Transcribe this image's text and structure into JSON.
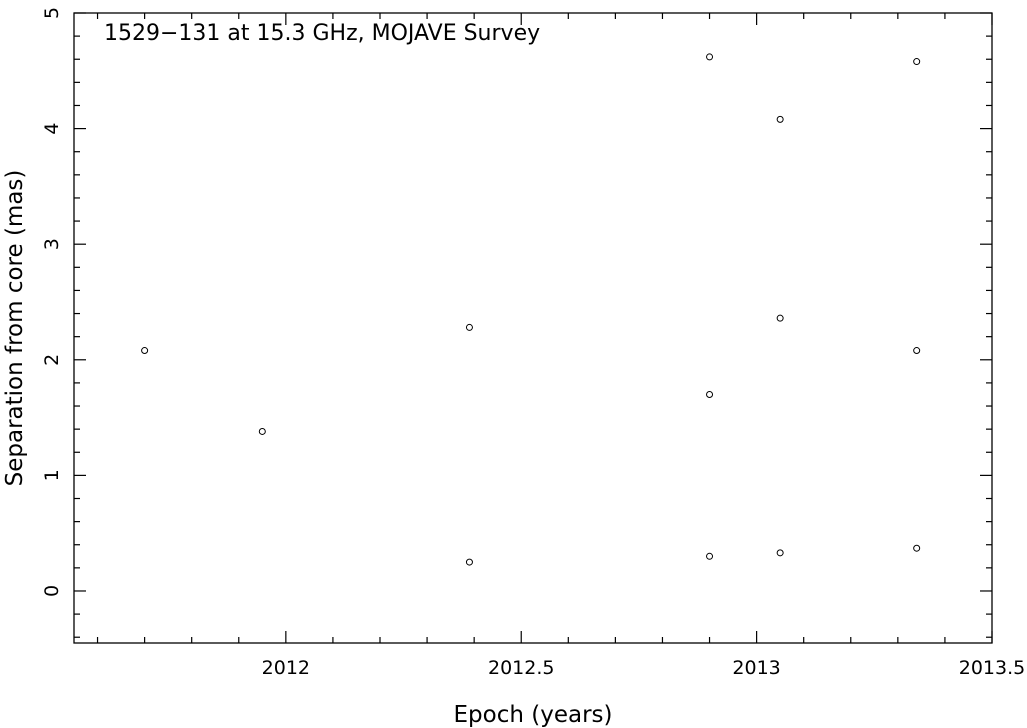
{
  "chart_data": {
    "type": "scatter",
    "title": "1529−131 at 15.3 GHz, MOJAVE Survey",
    "xlabel": "Epoch (years)",
    "ylabel": "Separation from core (mas)",
    "xlim": [
      2011.55,
      2013.5
    ],
    "ylim": [
      -0.45,
      5.0
    ],
    "x_ticks": [
      2012,
      2012.5,
      2013,
      2013.5
    ],
    "x_tick_labels": [
      "2012",
      "2012.5",
      "2013",
      "2013.5"
    ],
    "y_ticks": [
      0,
      1,
      2,
      3,
      4,
      5
    ],
    "y_tick_labels": [
      "0",
      "1",
      "2",
      "3",
      "4",
      "5"
    ],
    "grid": false,
    "marker": "open-circle",
    "points": [
      {
        "x": 2011.7,
        "y": 2.08
      },
      {
        "x": 2011.95,
        "y": 1.38
      },
      {
        "x": 2012.39,
        "y": 2.28
      },
      {
        "x": 2012.39,
        "y": 0.25
      },
      {
        "x": 2012.9,
        "y": 4.62
      },
      {
        "x": 2012.9,
        "y": 1.7
      },
      {
        "x": 2012.9,
        "y": 0.3
      },
      {
        "x": 2013.05,
        "y": 4.08
      },
      {
        "x": 2013.05,
        "y": 2.36
      },
      {
        "x": 2013.05,
        "y": 0.33
      },
      {
        "x": 2013.34,
        "y": 4.58
      },
      {
        "x": 2013.34,
        "y": 2.08
      },
      {
        "x": 2013.34,
        "y": 0.37
      }
    ]
  }
}
